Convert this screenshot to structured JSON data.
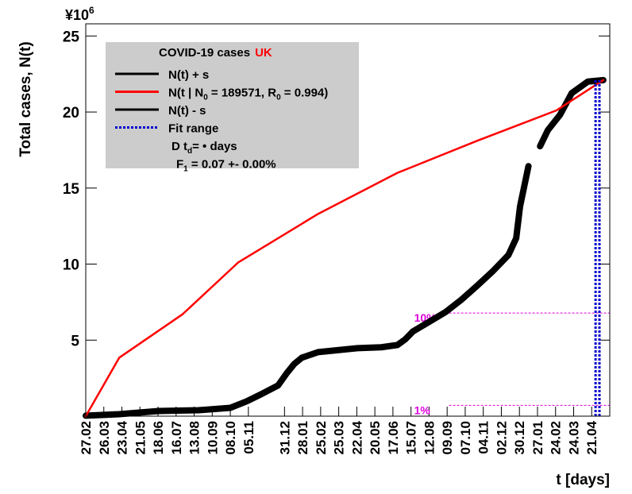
{
  "chart_data": {
    "type": "line",
    "y_axis_label": "Total cases, N(t)",
    "x_axis_label": "t [days]",
    "y_multiplier": "¥10",
    "y_multiplier_exp": "6",
    "xlim": [
      0,
      812
    ],
    "ylim": [
      0,
      25.8
    ],
    "yticks": [
      5,
      10,
      15,
      20,
      25
    ],
    "xticks": [
      {
        "value": 0,
        "label": "27.02"
      },
      {
        "value": 28,
        "label": "26.03"
      },
      {
        "value": 56,
        "label": "23.04"
      },
      {
        "value": 84,
        "label": "21.05"
      },
      {
        "value": 112,
        "label": "18.06"
      },
      {
        "value": 140,
        "label": "16.07"
      },
      {
        "value": 168,
        "label": "13.08"
      },
      {
        "value": 196,
        "label": "10.09"
      },
      {
        "value": 224,
        "label": "08.10"
      },
      {
        "value": 252,
        "label": "05.11"
      },
      {
        "value": 308,
        "label": "31.12"
      },
      {
        "value": 336,
        "label": "28.01"
      },
      {
        "value": 364,
        "label": "25.02"
      },
      {
        "value": 392,
        "label": "25.03"
      },
      {
        "value": 420,
        "label": "22.04"
      },
      {
        "value": 448,
        "label": "20.05"
      },
      {
        "value": 476,
        "label": "17.06"
      },
      {
        "value": 504,
        "label": "15.07"
      },
      {
        "value": 532,
        "label": "12.08"
      },
      {
        "value": 560,
        "label": "09.09"
      },
      {
        "value": 588,
        "label": "07.10"
      },
      {
        "value": 616,
        "label": "04.11"
      },
      {
        "value": 644,
        "label": "02.12"
      },
      {
        "value": 672,
        "label": "30.12"
      },
      {
        "value": 700,
        "label": "27.01"
      },
      {
        "value": 728,
        "label": "24.02"
      },
      {
        "value": 756,
        "label": "24.03"
      },
      {
        "value": 784,
        "label": "21.04"
      }
    ],
    "series": [
      {
        "color": "#000000",
        "width": 8,
        "x": [
          0,
          52,
          113,
          175,
          224,
          249,
          274,
          298,
          311,
          323,
          335,
          360,
          421,
          458,
          483,
          495,
          507,
          532,
          557,
          581,
          606,
          630,
          655,
          667,
          673,
          686,
          null,
          704,
          716,
          735,
          753,
          778,
          802
        ],
        "values": [
          0.03,
          0.13,
          0.34,
          0.39,
          0.55,
          0.97,
          1.49,
          2.02,
          2.8,
          3.43,
          3.85,
          4.21,
          4.47,
          4.53,
          4.68,
          5.05,
          5.57,
          6.2,
          6.83,
          7.62,
          8.56,
          9.5,
          10.6,
          11.7,
          13.8,
          16.44,
          null,
          17.75,
          18.8,
          19.82,
          21.24,
          22.0,
          22.1
        ]
      },
      {
        "color": "#ff0000",
        "width": 2.5,
        "x": [
          0,
          52,
          150,
          236,
          360,
          483,
          606,
          729,
          802
        ],
        "values": [
          0,
          3.85,
          6.7,
          10.1,
          13.3,
          16.0,
          18.1,
          20.1,
          22.1
        ]
      }
    ],
    "fit_range": {
      "color": "#0000cc",
      "x": [
        790,
        796
      ],
      "top": 22.1
    },
    "thresholds": {
      "color": "#dd00dd",
      "start": 563,
      "items": [
        {
          "label": "10%",
          "value": 6.78
        },
        {
          "label": "1%",
          "value": 0.71
        }
      ]
    },
    "legend": {
      "title": [
        "COVID-19 cases",
        "UK"
      ],
      "entries": [
        {
          "color": "#000000",
          "style": "solid",
          "parts": [
            "N(t) + s"
          ]
        },
        {
          "color": "#ff0000",
          "style": "solid",
          "parts": [
            "N(t | N",
            "0",
            " = 189571, R",
            "0",
            " =  0.994)"
          ]
        },
        {
          "color": "#000000",
          "style": "solid",
          "parts": [
            "N(t) - s"
          ]
        },
        {
          "color": "#0000cc",
          "style": "dotted",
          "parts": [
            "Fit range"
          ]
        },
        {
          "parts": [
            "D t",
            "d",
            "=  • days"
          ]
        },
        {
          "parts": [
            "F",
            "1",
            " =  0.07 +- 0.00%"
          ]
        }
      ]
    }
  }
}
